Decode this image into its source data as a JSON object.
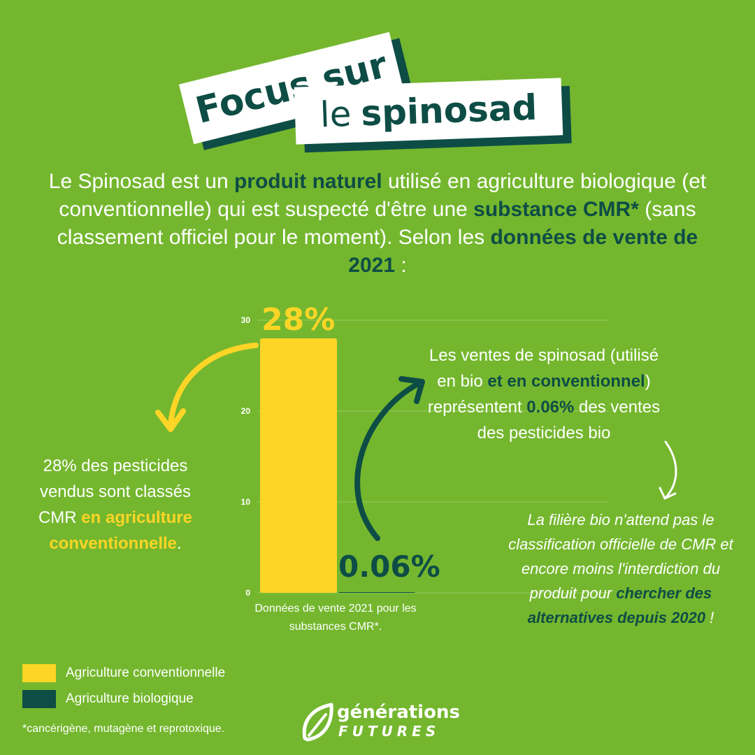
{
  "title": {
    "line1": "Focus sur",
    "line2_a": "le",
    "line2_b": "spinosad"
  },
  "intro": {
    "p1": "Le Spinosad est un ",
    "b1": "produit naturel",
    "p2": " utilisé en agriculture biologique (et conventionnelle) qui est suspecté d'être une ",
    "b2": "substance CMR*",
    "p3": " (sans classement officiel pour le moment). Selon les ",
    "b3": "données de vente de 2021",
    "p4": " :"
  },
  "chart_data": {
    "type": "bar",
    "categories": [
      "Agriculture conventionnelle",
      "Agriculture biologique"
    ],
    "values": [
      28,
      0.06
    ],
    "data_labels": [
      "28%",
      "0.06%"
    ],
    "yticks": [
      "0",
      "10",
      "20",
      "30"
    ],
    "ylim": [
      0,
      30
    ],
    "xlabel": "Données de vente 2021 pour les substances CMR*.",
    "ylabel": "",
    "grid": true,
    "colors": [
      "#fcd526",
      "#0e4d45"
    ]
  },
  "left_note": {
    "p1": "28% des pesticides vendus sont classés CMR ",
    "b1": "en agriculture conventionnelle",
    "p2": "."
  },
  "right_note": {
    "p1": "Les ventes de spinosad (utilisé en bio ",
    "b1": "et en conventionnel",
    "p2": ") représentent ",
    "b2": "0.06%",
    "p3": " des ventes des pesticides bio"
  },
  "italic_note": {
    "p1": "La filière bio n'attend pas le classification officielle de CMR et encore moins l'interdiction du produit pour ",
    "b1": "chercher des alternatives depuis 2020",
    "p2": " !"
  },
  "legend": [
    {
      "label": "Agriculture conventionnelle",
      "color": "#fcd526"
    },
    {
      "label": "Agriculture biologique",
      "color": "#0e4d45"
    }
  ],
  "footnote": "*cancérigène, mutagène et reprotoxique.",
  "logo": {
    "name": "générations",
    "sub": "FUTURES",
    "icon": "leaf-icon"
  },
  "colors": {
    "background": "#74b72e",
    "dark": "#0e4d45",
    "yellow": "#fcd526",
    "white": "#ffffff"
  }
}
